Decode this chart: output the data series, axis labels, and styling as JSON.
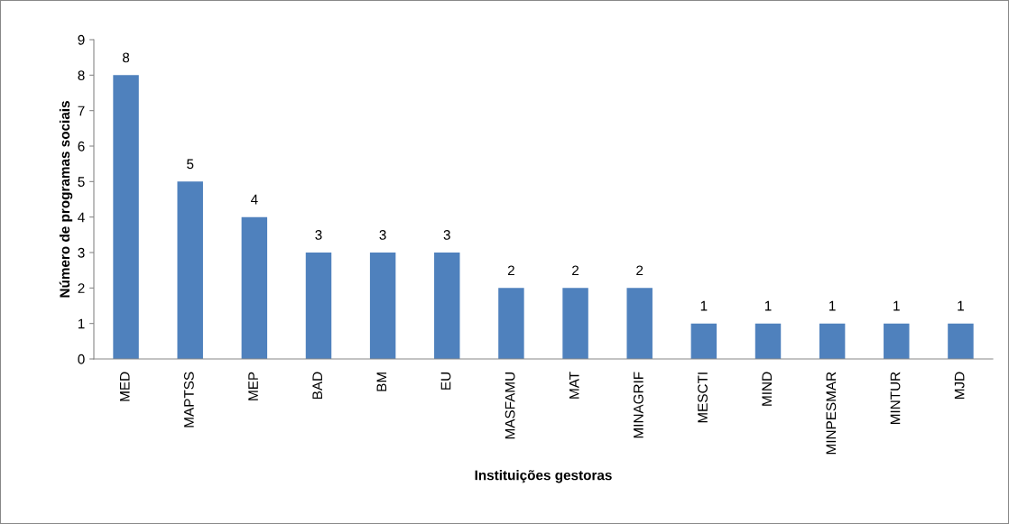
{
  "chart_data": {
    "type": "bar",
    "xlabel": "Instituições gestoras",
    "ylabel": "Número de programas sociais",
    "categories": [
      "MED",
      "MAPTSS",
      "MEP",
      "BAD",
      "BM",
      "EU",
      "MASFAMU",
      "MAT",
      "MINAGRIF",
      "MESCTI",
      "MIND",
      "MINPESMAR",
      "MINTUR",
      "MJD"
    ],
    "values": [
      8,
      5,
      4,
      3,
      3,
      3,
      2,
      2,
      2,
      1,
      1,
      1,
      1,
      1
    ],
    "color": "#4f81bd",
    "ylim": [
      0,
      9
    ],
    "yticks": [
      0,
      1,
      2,
      3,
      4,
      5,
      6,
      7,
      8,
      9
    ],
    "grid": false,
    "legend": false,
    "data_labels": true
  }
}
